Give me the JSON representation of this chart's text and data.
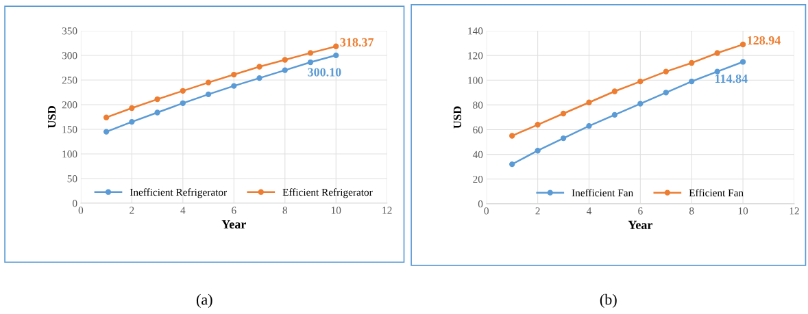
{
  "chart_data": [
    {
      "type": "line",
      "xlabel": "Year",
      "ylabel": "USD",
      "x": [
        1,
        2,
        3,
        4,
        5,
        6,
        7,
        8,
        9,
        10
      ],
      "xlim": [
        0,
        12
      ],
      "xticks": [
        0,
        2,
        4,
        6,
        8,
        10,
        12
      ],
      "ylim": [
        0,
        350
      ],
      "yticks": [
        0,
        50,
        100,
        150,
        200,
        250,
        300,
        350
      ],
      "grid": true,
      "legend": "bottom",
      "marker": "circle",
      "series": [
        {
          "name": "Inefficient Refrigerator",
          "color": "#5b9bd5",
          "values": [
            145,
            165,
            184,
            203,
            221,
            238,
            254,
            270,
            286,
            300.1
          ],
          "value_labels": [
            null,
            null,
            null,
            null,
            null,
            null,
            null,
            null,
            null,
            "300.10"
          ]
        },
        {
          "name": "Efficient Refrigerator",
          "color": "#ed7d31",
          "values": [
            174,
            193,
            211,
            228,
            245,
            261,
            277,
            291,
            305,
            318.37
          ],
          "value_labels": [
            null,
            null,
            null,
            null,
            null,
            null,
            null,
            null,
            null,
            "318.37"
          ]
        }
      ],
      "annotations": [
        "(a)"
      ]
    },
    {
      "type": "line",
      "xlabel": "Year",
      "ylabel": "USD",
      "x": [
        1,
        2,
        3,
        4,
        5,
        6,
        7,
        8,
        9,
        10
      ],
      "xlim": [
        0,
        12
      ],
      "xticks": [
        0,
        2,
        4,
        6,
        8,
        10,
        12
      ],
      "ylim": [
        0,
        140
      ],
      "yticks": [
        0,
        20,
        40,
        60,
        80,
        100,
        120,
        140
      ],
      "grid": true,
      "legend": "bottom",
      "marker": "circle",
      "series": [
        {
          "name": "Inefficient Fan",
          "color": "#5b9bd5",
          "values": [
            32,
            43,
            53,
            63,
            72,
            81,
            90,
            99,
            107,
            114.84
          ],
          "value_labels": [
            null,
            null,
            null,
            null,
            null,
            null,
            null,
            null,
            null,
            "114.84"
          ]
        },
        {
          "name": "Efficient Fan",
          "color": "#ed7d31",
          "values": [
            55,
            64,
            73,
            82,
            91,
            99,
            107,
            114,
            122,
            128.94
          ],
          "value_labels": [
            null,
            null,
            null,
            null,
            null,
            null,
            null,
            null,
            null,
            "128.94"
          ]
        }
      ],
      "annotations": [
        "(b)"
      ]
    }
  ]
}
